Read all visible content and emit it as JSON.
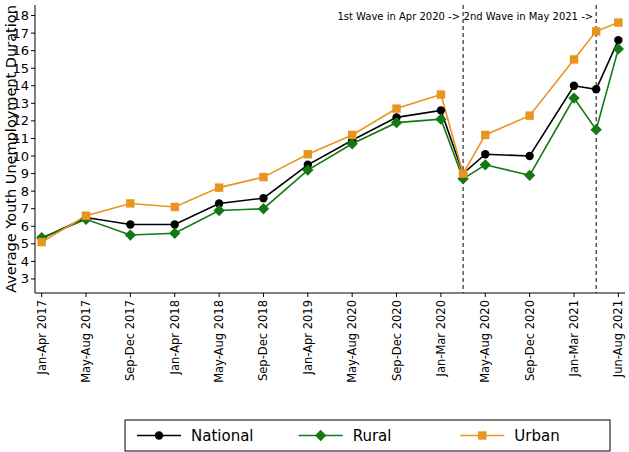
{
  "chart_data": {
    "type": "line",
    "y_label": "Average Youth Unemployment Duration",
    "x": [
      0,
      1,
      2,
      3,
      4,
      5,
      6,
      7,
      8,
      9,
      9.5,
      10,
      11,
      12,
      12.5,
      13
    ],
    "xlim": [
      -0.15,
      13.15
    ],
    "xticks": [
      {
        "value": 0,
        "label": "Jan-Apr 2017"
      },
      {
        "value": 1,
        "label": "May-Aug 2017"
      },
      {
        "value": 2,
        "label": "Sep-Dec 2017"
      },
      {
        "value": 3,
        "label": "Jan-Apr 2018"
      },
      {
        "value": 4,
        "label": "May-Aug 2018"
      },
      {
        "value": 5,
        "label": "Sep-Dec 2018"
      },
      {
        "value": 6,
        "label": "Jan-Apr 2019"
      },
      {
        "value": 7,
        "label": "May-Aug 2020"
      },
      {
        "value": 8,
        "label": "Sep-Dec 2020"
      },
      {
        "value": 9,
        "label": "Jan-Mar 2020"
      },
      {
        "value": 10,
        "label": "May-Aug 2020"
      },
      {
        "value": 11,
        "label": "Sep-Dec 2020"
      },
      {
        "value": 12,
        "label": "Jan-Mar 2021"
      },
      {
        "value": 13,
        "label": "Jun-Aug 2021"
      }
    ],
    "ylim": [
      2.2,
      18.6
    ],
    "yticks": [
      3,
      4,
      5,
      6,
      7,
      8,
      9,
      10,
      11,
      12,
      13,
      14,
      15,
      16,
      17,
      18
    ],
    "grid": false,
    "legend": "bottom",
    "annotations": [
      {
        "text": "1st Wave in Apr 2020 ->",
        "x": 9.5
      },
      {
        "text": "2nd Wave in May 2021 ->",
        "x": 12.5
      }
    ],
    "series": [
      {
        "name": "National",
        "color": "#000000",
        "marker": "circle",
        "values": [
          5.3,
          6.5,
          6.1,
          6.1,
          7.3,
          7.6,
          9.5,
          10.9,
          12.2,
          12.6,
          9.0,
          10.1,
          10.0,
          14.0,
          13.8,
          16.6
        ]
      },
      {
        "name": "Rural",
        "color": "#147814",
        "marker": "diamond",
        "values": [
          5.35,
          6.4,
          5.5,
          5.6,
          6.9,
          7.0,
          9.2,
          10.7,
          11.9,
          12.1,
          8.7,
          9.5,
          8.9,
          13.3,
          11.5,
          16.1
        ]
      },
      {
        "name": "Urban",
        "color": "#ea9420",
        "marker": "square",
        "values": [
          5.1,
          6.6,
          7.3,
          7.1,
          8.2,
          8.8,
          10.1,
          11.2,
          12.7,
          13.5,
          9.0,
          11.2,
          12.3,
          15.5,
          17.1,
          17.6
        ]
      }
    ]
  }
}
